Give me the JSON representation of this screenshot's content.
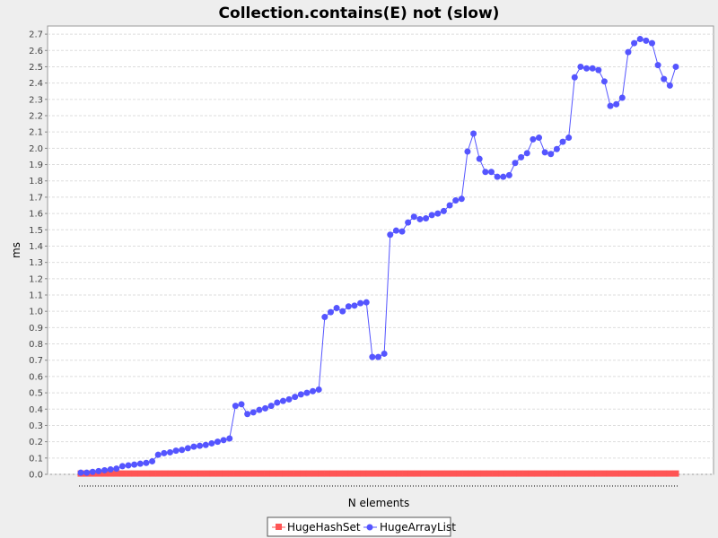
{
  "chart_data": {
    "type": "line",
    "title": "Collection.contains(E) not (slow)",
    "xlabel": "N elements",
    "ylabel": "ms",
    "ylim": [
      0,
      2.75
    ],
    "yticks": [
      "0.0",
      "0.1",
      "0.2",
      "0.3",
      "0.4",
      "0.5",
      "0.6",
      "0.7",
      "0.8",
      "0.9",
      "1.0",
      "1.1",
      "1.2",
      "1.3",
      "1.4",
      "1.5",
      "1.6",
      "1.7",
      "1.8",
      "1.9",
      "2.0",
      "2.1",
      "2.2",
      "2.3",
      "2.4",
      "2.5",
      "2.6",
      "2.7"
    ],
    "grid": true,
    "legend_position": "bottom",
    "series": [
      {
        "name": "HugeHashSet",
        "color": "#ff5555",
        "marker": "square",
        "values": [
          0.005,
          0.005,
          0.005,
          0.005,
          0.005,
          0.005,
          0.005,
          0.005,
          0.005,
          0.005,
          0.005,
          0.005,
          0.005,
          0.005,
          0.005,
          0.005,
          0.005,
          0.005,
          0.005,
          0.005,
          0.005,
          0.005,
          0.005,
          0.005,
          0.005,
          0.005,
          0.005,
          0.005,
          0.005,
          0.005,
          0.005,
          0.005,
          0.005,
          0.005,
          0.005,
          0.005,
          0.005,
          0.005,
          0.005,
          0.005,
          0.005,
          0.005,
          0.005,
          0.005,
          0.005,
          0.005,
          0.005,
          0.005,
          0.005,
          0.005,
          0.005,
          0.005,
          0.005,
          0.005,
          0.005,
          0.005,
          0.005,
          0.005,
          0.005,
          0.005,
          0.005,
          0.005,
          0.005,
          0.005,
          0.005,
          0.005,
          0.005,
          0.005,
          0.005,
          0.005,
          0.005,
          0.005,
          0.005,
          0.005,
          0.005,
          0.005,
          0.005,
          0.005,
          0.005,
          0.005,
          0.005,
          0.005,
          0.005,
          0.005,
          0.005,
          0.005,
          0.005,
          0.005,
          0.005,
          0.005,
          0.005,
          0.005,
          0.005,
          0.005,
          0.005,
          0.005,
          0.005,
          0.005,
          0.005,
          0.005
        ]
      },
      {
        "name": "HugeArrayList",
        "color": "#5555ff",
        "marker": "circle",
        "values": [
          0.01,
          0.01,
          0.015,
          0.02,
          0.025,
          0.03,
          0.035,
          0.05,
          0.055,
          0.06,
          0.065,
          0.07,
          0.08,
          0.12,
          0.13,
          0.135,
          0.145,
          0.15,
          0.16,
          0.17,
          0.175,
          0.18,
          0.19,
          0.2,
          0.21,
          0.22,
          0.42,
          0.43,
          0.37,
          0.38,
          0.395,
          0.405,
          0.42,
          0.44,
          0.45,
          0.46,
          0.475,
          0.49,
          0.5,
          0.51,
          0.52,
          0.965,
          0.995,
          1.02,
          1.0,
          1.03,
          1.035,
          1.05,
          1.055,
          0.72,
          0.72,
          0.74,
          1.47,
          1.495,
          1.49,
          1.545,
          1.58,
          1.565,
          1.57,
          1.59,
          1.6,
          1.615,
          1.65,
          1.68,
          1.69,
          1.98,
          2.09,
          1.935,
          1.855,
          1.855,
          1.825,
          1.825,
          1.835,
          1.91,
          1.945,
          1.97,
          2.055,
          2.065,
          1.975,
          1.965,
          1.995,
          2.04,
          2.065,
          2.435,
          2.5,
          2.49,
          2.49,
          2.48,
          2.41,
          2.26,
          2.27,
          2.31,
          2.59,
          2.645,
          2.67,
          2.66,
          2.645,
          2.51,
          2.425,
          2.385,
          2.5
        ]
      }
    ]
  }
}
